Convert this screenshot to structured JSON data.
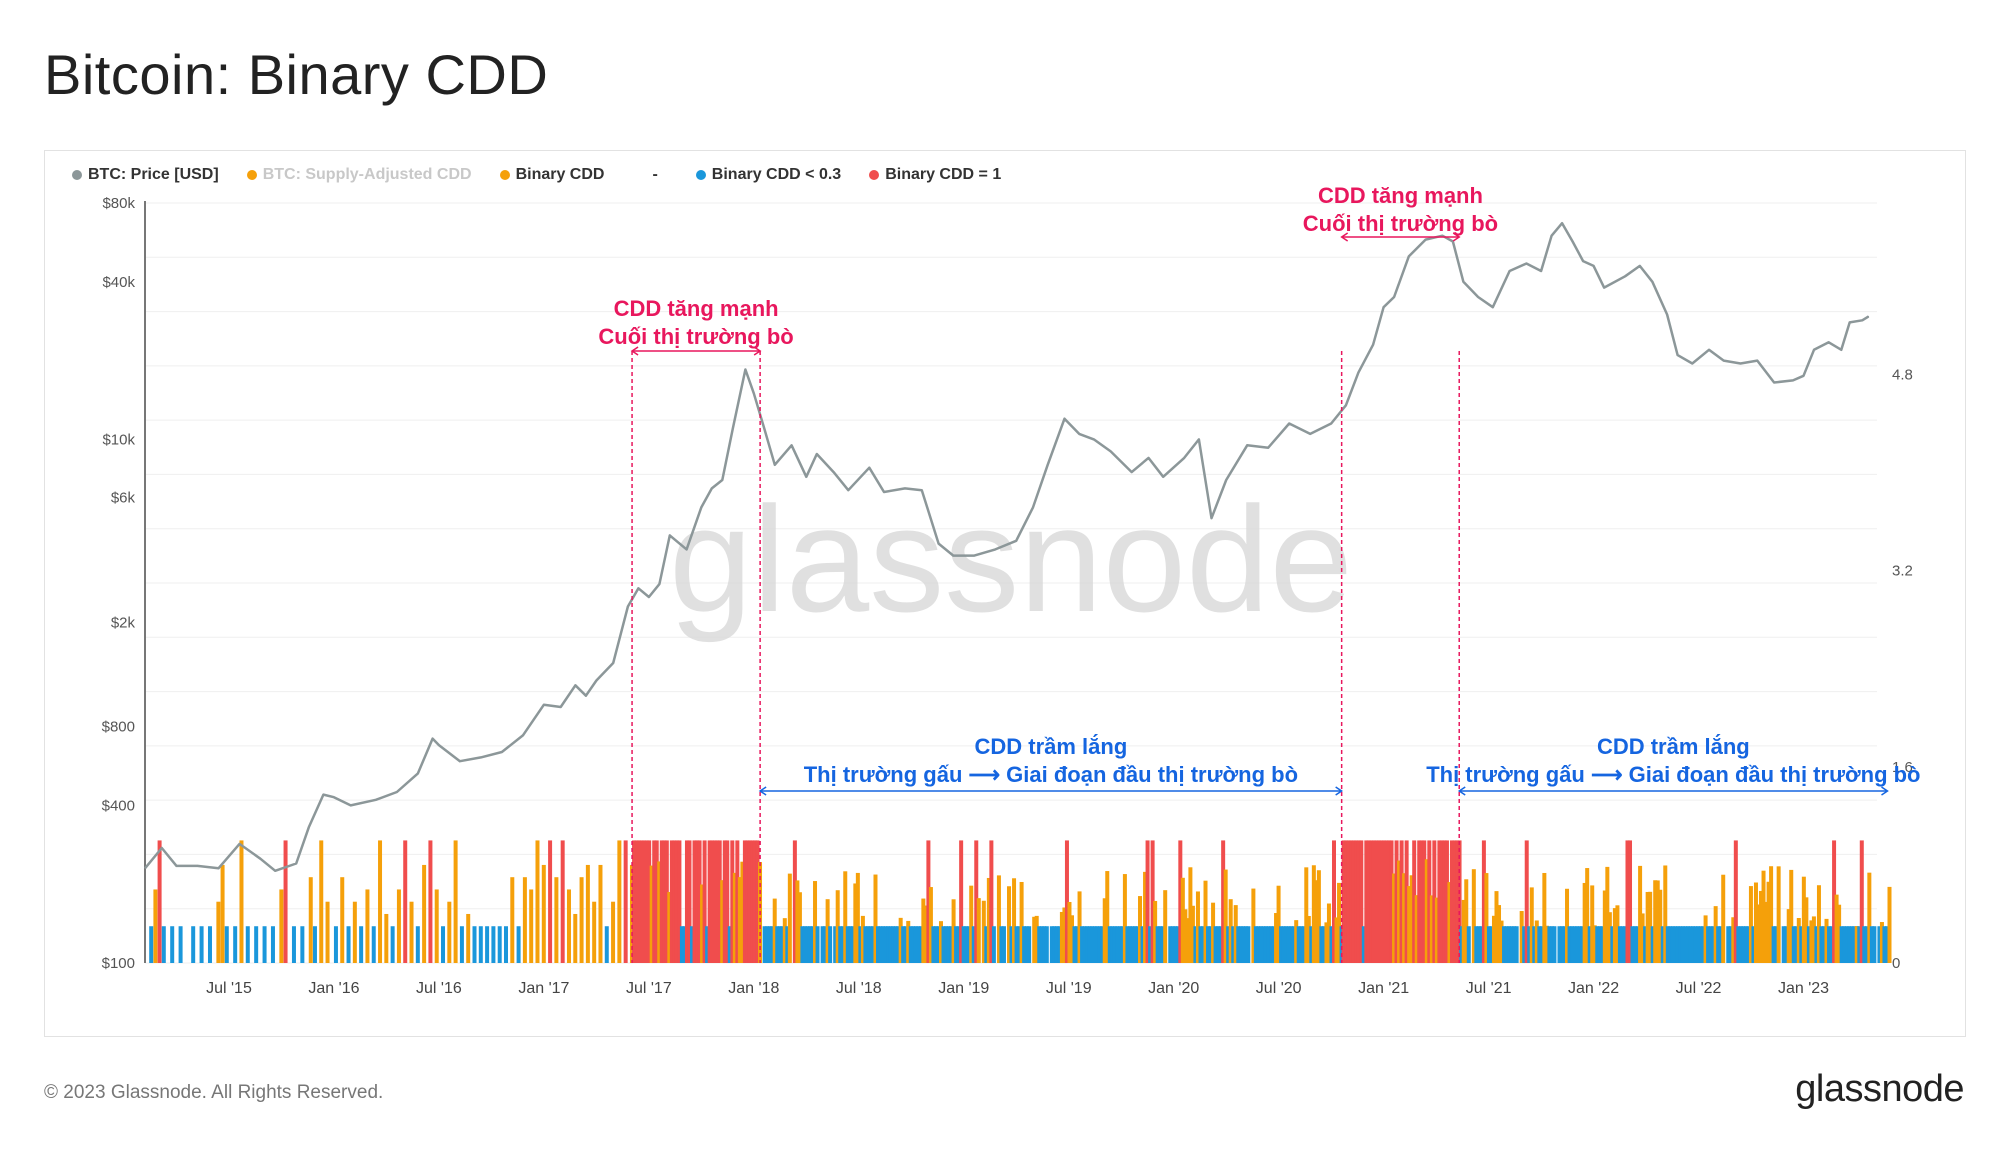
{
  "title": "Bitcoin: Binary CDD",
  "footer": {
    "copyright": "© 2023 Glassnode. All Rights Reserved.",
    "logo": "glassnode"
  },
  "watermark": "glassnode",
  "legend": [
    {
      "label": "BTC: Price [USD]",
      "color": "#8c9799",
      "muted": false
    },
    {
      "label": "BTC: Supply-Adjusted CDD",
      "color": "#f5a00a",
      "muted": true
    },
    {
      "label": "Binary CDD",
      "color": "#f5a00a",
      "muted": false
    },
    {
      "label": "-",
      "color": "",
      "muted": false
    },
    {
      "label": "Binary CDD < 0.3",
      "color": "#1a97db",
      "muted": false
    },
    {
      "label": "Binary CDD = 1",
      "color": "#f04d4d",
      "muted": false
    }
  ],
  "annotations": {
    "peak_label_1": "CDD tăng mạnh",
    "peak_label_2": "Cuối thị trường bò",
    "calm_label_1": "CDD trầm lắng",
    "calm_label_2": "Thị trường gấu ⟶ Giai đoạn đầu thị trường bò",
    "periods": [
      {
        "kind": "peak",
        "start": 2017.42,
        "end": 2018.03
      },
      {
        "kind": "calm",
        "start": 2018.03,
        "end": 2020.8
      },
      {
        "kind": "peak",
        "start": 2020.8,
        "end": 2021.36
      },
      {
        "kind": "calm",
        "start": 2021.36,
        "end": 2023.4
      }
    ],
    "peak_color": "#e8175d",
    "calm_color": "#1565e0"
  },
  "chart_data": {
    "type": "line",
    "title": "Bitcoin: Binary CDD",
    "x_range": [
      2015.1,
      2023.35
    ],
    "x_ticks": [
      {
        "t": 2015.5,
        "label": "Jul '15"
      },
      {
        "t": 2016.0,
        "label": "Jan '16"
      },
      {
        "t": 2016.5,
        "label": "Jul '16"
      },
      {
        "t": 2017.0,
        "label": "Jan '17"
      },
      {
        "t": 2017.5,
        "label": "Jul '17"
      },
      {
        "t": 2018.0,
        "label": "Jan '18"
      },
      {
        "t": 2018.5,
        "label": "Jul '18"
      },
      {
        "t": 2019.0,
        "label": "Jan '19"
      },
      {
        "t": 2019.5,
        "label": "Jul '19"
      },
      {
        "t": 2020.0,
        "label": "Jan '20"
      },
      {
        "t": 2020.5,
        "label": "Jul '20"
      },
      {
        "t": 2021.0,
        "label": "Jan '21"
      },
      {
        "t": 2021.5,
        "label": "Jul '21"
      },
      {
        "t": 2022.0,
        "label": "Jan '22"
      },
      {
        "t": 2022.5,
        "label": "Jul '22"
      },
      {
        "t": 2023.0,
        "label": "Jan '23"
      }
    ],
    "y_left": {
      "scale": "log",
      "range": [
        100,
        80000
      ],
      "ticks": [
        {
          "v": 100,
          "label": "$100"
        },
        {
          "v": 400,
          "label": "$400"
        },
        {
          "v": 800,
          "label": "$800"
        },
        {
          "v": 2000,
          "label": "$2k"
        },
        {
          "v": 6000,
          "label": "$6k"
        },
        {
          "v": 10000,
          "label": "$10k"
        },
        {
          "v": 40000,
          "label": "$40k"
        },
        {
          "v": 80000,
          "label": "$80k"
        }
      ]
    },
    "y_right": {
      "scale": "linear",
      "range": [
        0,
        6.2
      ],
      "ticks": [
        {
          "v": 0,
          "label": "0"
        },
        {
          "v": 1.6,
          "label": "1.6"
        },
        {
          "v": 3.2,
          "label": "3.2"
        },
        {
          "v": 4.8,
          "label": "4.8"
        }
      ]
    },
    "series": [
      {
        "name": "BTC: Price [USD]",
        "color": "#8c9799",
        "points": [
          [
            2015.1,
            230
          ],
          [
            2015.18,
            275
          ],
          [
            2015.25,
            235
          ],
          [
            2015.35,
            235
          ],
          [
            2015.45,
            230
          ],
          [
            2015.55,
            285
          ],
          [
            2015.65,
            250
          ],
          [
            2015.72,
            225
          ],
          [
            2015.82,
            240
          ],
          [
            2015.88,
            330
          ],
          [
            2015.95,
            440
          ],
          [
            2016.0,
            430
          ],
          [
            2016.08,
            400
          ],
          [
            2016.2,
            420
          ],
          [
            2016.3,
            450
          ],
          [
            2016.4,
            530
          ],
          [
            2016.47,
            720
          ],
          [
            2016.5,
            680
          ],
          [
            2016.6,
            590
          ],
          [
            2016.7,
            610
          ],
          [
            2016.8,
            640
          ],
          [
            2016.9,
            740
          ],
          [
            2017.0,
            970
          ],
          [
            2017.08,
            950
          ],
          [
            2017.15,
            1150
          ],
          [
            2017.2,
            1050
          ],
          [
            2017.25,
            1200
          ],
          [
            2017.33,
            1400
          ],
          [
            2017.4,
            2300
          ],
          [
            2017.45,
            2700
          ],
          [
            2017.5,
            2500
          ],
          [
            2017.55,
            2800
          ],
          [
            2017.6,
            4300
          ],
          [
            2017.68,
            3800
          ],
          [
            2017.75,
            5500
          ],
          [
            2017.8,
            6500
          ],
          [
            2017.85,
            7000
          ],
          [
            2017.9,
            11000
          ],
          [
            2017.96,
            18500
          ],
          [
            2018.0,
            15000
          ],
          [
            2018.05,
            11000
          ],
          [
            2018.1,
            8000
          ],
          [
            2018.18,
            9500
          ],
          [
            2018.25,
            7200
          ],
          [
            2018.3,
            8800
          ],
          [
            2018.38,
            7500
          ],
          [
            2018.45,
            6400
          ],
          [
            2018.55,
            7800
          ],
          [
            2018.62,
            6300
          ],
          [
            2018.72,
            6500
          ],
          [
            2018.8,
            6400
          ],
          [
            2018.88,
            4000
          ],
          [
            2018.95,
            3600
          ],
          [
            2019.05,
            3600
          ],
          [
            2019.15,
            3800
          ],
          [
            2019.25,
            4100
          ],
          [
            2019.33,
            5500
          ],
          [
            2019.4,
            8000
          ],
          [
            2019.48,
            12000
          ],
          [
            2019.55,
            10500
          ],
          [
            2019.62,
            10000
          ],
          [
            2019.7,
            9000
          ],
          [
            2019.8,
            7500
          ],
          [
            2019.88,
            8500
          ],
          [
            2019.95,
            7200
          ],
          [
            2020.05,
            8500
          ],
          [
            2020.12,
            10000
          ],
          [
            2020.18,
            5000
          ],
          [
            2020.25,
            7000
          ],
          [
            2020.35,
            9500
          ],
          [
            2020.45,
            9300
          ],
          [
            2020.55,
            11500
          ],
          [
            2020.65,
            10500
          ],
          [
            2020.75,
            11500
          ],
          [
            2020.82,
            13500
          ],
          [
            2020.88,
            18000
          ],
          [
            2020.95,
            23000
          ],
          [
            2021.0,
            32000
          ],
          [
            2021.05,
            35000
          ],
          [
            2021.12,
            50000
          ],
          [
            2021.2,
            58000
          ],
          [
            2021.28,
            60000
          ],
          [
            2021.33,
            57000
          ],
          [
            2021.38,
            40000
          ],
          [
            2021.45,
            35000
          ],
          [
            2021.52,
            32000
          ],
          [
            2021.6,
            44000
          ],
          [
            2021.68,
            47000
          ],
          [
            2021.75,
            44000
          ],
          [
            2021.8,
            60000
          ],
          [
            2021.85,
            67000
          ],
          [
            2021.9,
            57000
          ],
          [
            2021.95,
            48000
          ],
          [
            2022.0,
            46000
          ],
          [
            2022.05,
            38000
          ],
          [
            2022.15,
            42000
          ],
          [
            2022.22,
            46000
          ],
          [
            2022.28,
            40000
          ],
          [
            2022.35,
            30000
          ],
          [
            2022.4,
            21000
          ],
          [
            2022.47,
            19500
          ],
          [
            2022.55,
            22000
          ],
          [
            2022.62,
            20000
          ],
          [
            2022.7,
            19500
          ],
          [
            2022.78,
            20000
          ],
          [
            2022.86,
            16500
          ],
          [
            2022.95,
            16800
          ],
          [
            2023.0,
            17500
          ],
          [
            2023.05,
            22000
          ],
          [
            2023.12,
            23500
          ],
          [
            2023.18,
            22000
          ],
          [
            2023.22,
            28000
          ],
          [
            2023.28,
            28500
          ],
          [
            2023.31,
            29500
          ]
        ]
      },
      {
        "name": "Binary CDD",
        "color": "#f5a00a",
        "axis": "right",
        "note": "daily 0..1 bars"
      },
      {
        "name": "Binary CDD < 0.3",
        "color": "#1a97db",
        "axis": "right"
      },
      {
        "name": "Binary CDD = 1",
        "color": "#f04d4d",
        "axis": "right"
      }
    ],
    "binary_cdd_bars": [
      [
        2015.12,
        0.3,
        "blue"
      ],
      [
        2015.14,
        0.6,
        "orange"
      ],
      [
        2015.16,
        1.0,
        "red"
      ],
      [
        2015.18,
        0.3,
        "blue"
      ],
      [
        2015.22,
        0.3,
        "blue"
      ],
      [
        2015.26,
        0.3,
        "blue"
      ],
      [
        2015.32,
        0.3,
        "blue"
      ],
      [
        2015.36,
        0.3,
        "blue"
      ],
      [
        2015.4,
        0.3,
        "blue"
      ],
      [
        2015.44,
        0.5,
        "orange"
      ],
      [
        2015.46,
        0.8,
        "orange"
      ],
      [
        2015.48,
        0.3,
        "blue"
      ],
      [
        2015.52,
        0.3,
        "blue"
      ],
      [
        2015.55,
        1.0,
        "orange"
      ],
      [
        2015.58,
        0.3,
        "blue"
      ],
      [
        2015.62,
        0.3,
        "blue"
      ],
      [
        2015.66,
        0.3,
        "blue"
      ],
      [
        2015.7,
        0.3,
        "blue"
      ],
      [
        2015.74,
        0.6,
        "orange"
      ],
      [
        2015.76,
        1.0,
        "red"
      ],
      [
        2015.8,
        0.3,
        "blue"
      ],
      [
        2015.84,
        0.3,
        "blue"
      ],
      [
        2015.88,
        0.7,
        "orange"
      ],
      [
        2015.9,
        0.3,
        "blue"
      ],
      [
        2015.93,
        1.0,
        "orange"
      ],
      [
        2015.96,
        0.5,
        "orange"
      ],
      [
        2016.0,
        0.3,
        "blue"
      ],
      [
        2016.03,
        0.7,
        "orange"
      ],
      [
        2016.06,
        0.3,
        "blue"
      ],
      [
        2016.09,
        0.5,
        "orange"
      ],
      [
        2016.12,
        0.3,
        "blue"
      ],
      [
        2016.15,
        0.6,
        "orange"
      ],
      [
        2016.18,
        0.3,
        "blue"
      ],
      [
        2016.21,
        1.0,
        "orange"
      ],
      [
        2016.24,
        0.4,
        "orange"
      ],
      [
        2016.27,
        0.3,
        "blue"
      ],
      [
        2016.3,
        0.6,
        "orange"
      ],
      [
        2016.33,
        1.0,
        "red"
      ],
      [
        2016.36,
        0.5,
        "orange"
      ],
      [
        2016.39,
        0.3,
        "blue"
      ],
      [
        2016.42,
        0.8,
        "orange"
      ],
      [
        2016.45,
        1.0,
        "red"
      ],
      [
        2016.48,
        0.6,
        "orange"
      ],
      [
        2016.51,
        0.3,
        "blue"
      ],
      [
        2016.54,
        0.5,
        "orange"
      ],
      [
        2016.57,
        1.0,
        "orange"
      ],
      [
        2016.6,
        0.3,
        "blue"
      ],
      [
        2016.63,
        0.4,
        "orange"
      ],
      [
        2016.66,
        0.3,
        "blue"
      ],
      [
        2016.69,
        0.3,
        "blue"
      ],
      [
        2016.72,
        0.3,
        "blue"
      ],
      [
        2016.75,
        0.3,
        "blue"
      ],
      [
        2016.78,
        0.3,
        "blue"
      ],
      [
        2016.81,
        0.3,
        "blue"
      ],
      [
        2016.84,
        0.7,
        "orange"
      ],
      [
        2016.87,
        0.3,
        "blue"
      ],
      [
        2016.9,
        0.7,
        "orange"
      ],
      [
        2016.93,
        0.6,
        "orange"
      ],
      [
        2016.96,
        1.0,
        "orange"
      ],
      [
        2016.99,
        0.8,
        "orange"
      ],
      [
        2017.02,
        1.0,
        "red"
      ],
      [
        2017.05,
        0.7,
        "orange"
      ],
      [
        2017.08,
        1.0,
        "red"
      ],
      [
        2017.11,
        0.6,
        "orange"
      ],
      [
        2017.14,
        0.4,
        "orange"
      ],
      [
        2017.17,
        0.7,
        "orange"
      ],
      [
        2017.2,
        0.8,
        "orange"
      ],
      [
        2017.23,
        0.5,
        "orange"
      ],
      [
        2017.26,
        0.8,
        "orange"
      ],
      [
        2017.29,
        0.3,
        "blue"
      ],
      [
        2017.32,
        0.5,
        "orange"
      ],
      [
        2017.35,
        1.0,
        "orange"
      ],
      [
        2017.38,
        1.0,
        "red"
      ],
      [
        2017.41,
        0.8,
        "orange"
      ]
    ]
  }
}
